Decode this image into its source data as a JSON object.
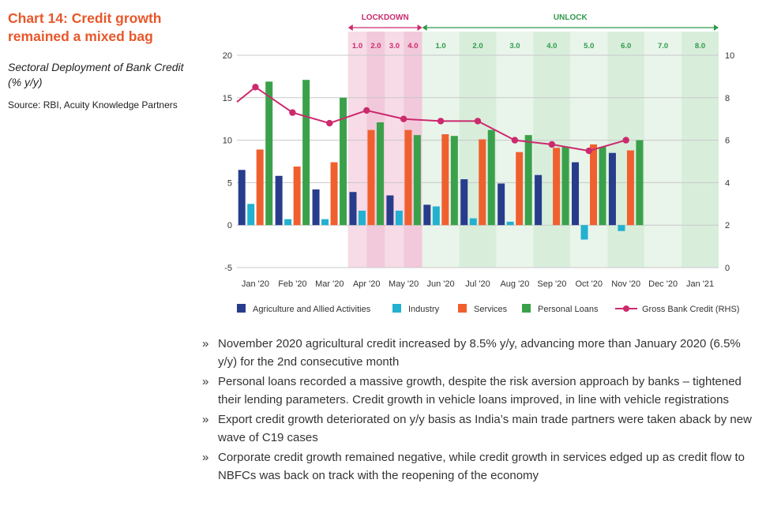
{
  "heading": {
    "title": "Chart 14: Credit growth remained a mixed bag",
    "subtitle": "Sectoral Deployment of Bank Credit (% y/y)",
    "source": "Source: RBI, Acuity Knowledge Partners"
  },
  "colors": {
    "title": "#e8572a",
    "agri": "#283c8c",
    "industry": "#22b1d0",
    "services": "#f0602f",
    "personal": "#3aa14a",
    "gross": "#cc2a6d",
    "lockdown_label": "#cc2a6d",
    "unlock_label": "#2f9a4a"
  },
  "chart_data": {
    "type": "bar",
    "categories": [
      "Jan '20",
      "Feb '20",
      "Mar '20",
      "Apr '20",
      "May '20",
      "Jun '20",
      "Jul '20",
      "Aug '20",
      "Sep '20",
      "Oct '20",
      "Nov '20",
      "Dec '20",
      "Jan '21"
    ],
    "series": [
      {
        "key": "agri",
        "name": "Agriculture and Allied Activities",
        "values": [
          6.5,
          5.8,
          4.2,
          3.9,
          3.5,
          2.4,
          5.4,
          4.9,
          5.9,
          7.4,
          8.5,
          null,
          null
        ]
      },
      {
        "key": "industry",
        "name": "Industry",
        "values": [
          2.5,
          0.7,
          0.7,
          1.7,
          1.7,
          2.2,
          0.8,
          0.4,
          null,
          -1.7,
          -0.7,
          null,
          null
        ]
      },
      {
        "key": "services",
        "name": "Services",
        "values": [
          8.9,
          6.9,
          7.4,
          11.2,
          11.2,
          10.7,
          10.1,
          8.6,
          9.1,
          9.5,
          8.8,
          null,
          null
        ]
      },
      {
        "key": "personal",
        "name": "Personal Loans",
        "values": [
          16.9,
          17.1,
          15.0,
          12.1,
          10.6,
          10.5,
          11.2,
          10.6,
          9.2,
          9.2,
          10.0,
          null,
          null
        ]
      }
    ],
    "line": {
      "name": "Gross Bank Credit (RHS)",
      "axis": "right",
      "x_offsets": [
        0,
        0,
        0,
        0,
        0,
        0,
        0,
        0,
        0,
        0,
        0
      ],
      "values": [
        8.5,
        7.3,
        6.8,
        7.4,
        7.0,
        6.9,
        6.9,
        6.0,
        5.8,
        5.5,
        6.0
      ],
      "line_start_value": 7.8
    },
    "ylim": [
      -5,
      20
    ],
    "yticks": [
      -5,
      0,
      5,
      10,
      15,
      20
    ],
    "y2lim": [
      0,
      10
    ],
    "y2ticks": [
      0,
      2,
      4,
      6,
      8,
      10
    ],
    "grid": true,
    "legend_position": "bottom",
    "phases": [
      {
        "name": "LOCKDOWN",
        "from": 3,
        "to": 4
      },
      {
        "name": "UNLOCK",
        "from": 5,
        "to": 12
      }
    ],
    "stage_labels": [
      {
        "label": "1.0",
        "phase": "lockdown",
        "at": 3.0
      },
      {
        "label": "2.0",
        "phase": "lockdown",
        "at": 3.5
      },
      {
        "label": "3.0",
        "phase": "lockdown",
        "at": 4.0
      },
      {
        "label": "4.0",
        "phase": "lockdown",
        "at": 4.5
      },
      {
        "label": "1.0",
        "phase": "unlock",
        "at": 5.0
      },
      {
        "label": "2.0",
        "phase": "unlock",
        "at": 6.0
      },
      {
        "label": "3.0",
        "phase": "unlock",
        "at": 7.0
      },
      {
        "label": "4.0",
        "phase": "unlock",
        "at": 8.0
      },
      {
        "label": "5.0",
        "phase": "unlock",
        "at": 9.0
      },
      {
        "label": "6.0",
        "phase": "unlock",
        "at": 10.0
      },
      {
        "label": "7.0",
        "phase": "unlock",
        "at": 11.0
      },
      {
        "label": "8.0",
        "phase": "unlock",
        "at": 12.0
      }
    ]
  },
  "bullets": [
    "November 2020 agricultural credit increased by 8.5% y/y, advancing more than January 2020 (6.5% y/y) for the 2nd consecutive month",
    "Personal loans recorded a massive growth, despite the risk aversion approach by banks – tightened their lending parameters. Credit growth in vehicle loans improved, in line with vehicle registrations",
    "Export credit growth deteriorated on y/y basis as India’s main trade partners were taken aback by new wave of C19 cases",
    "Corporate credit growth remained negative, while credit growth in services edged up as credit flow to NBFCs was back on track with the reopening of the economy"
  ],
  "bullet_mark": "»"
}
